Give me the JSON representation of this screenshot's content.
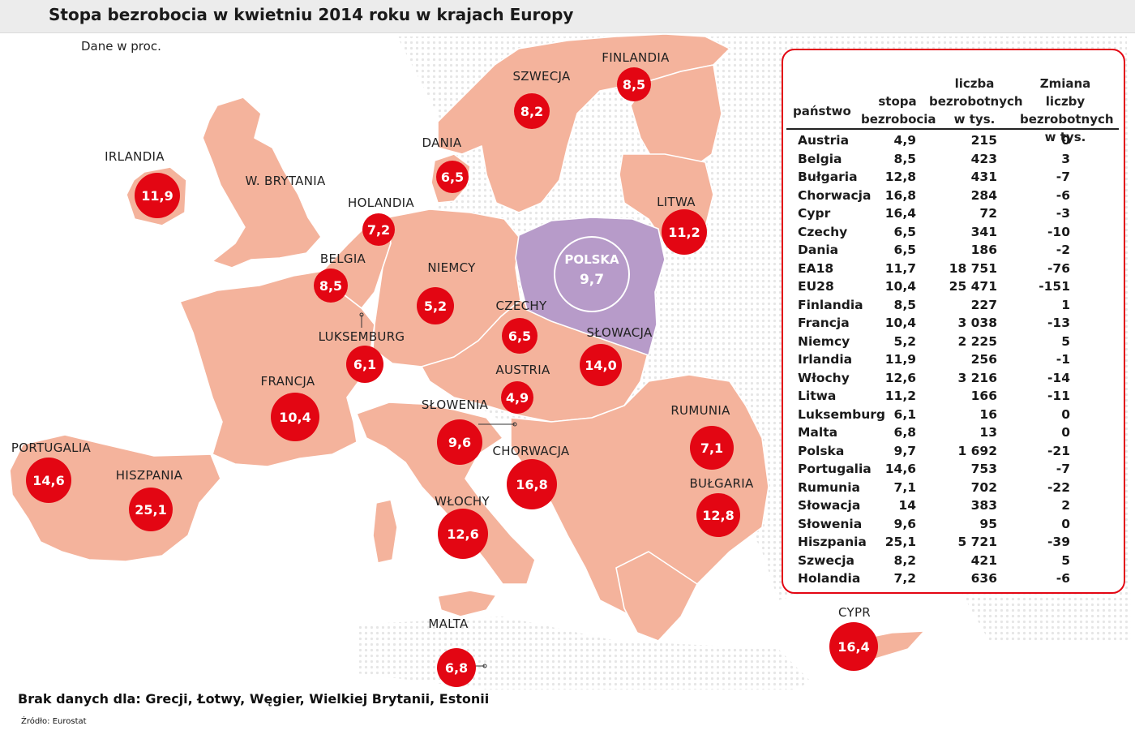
{
  "title": "Stopa bezrobocia w kwietniu 2014 roku w krajach Europy",
  "subtitle": "Dane w proc.",
  "colors": {
    "land": "#f4b39c",
    "poland": "#b79bc9",
    "bubble": "#e30613",
    "background_dots": "#e6e6e6"
  },
  "countries": [
    {
      "name": "IRLANDIA",
      "value": "11,9"
    },
    {
      "name": "W. BRYTANIA",
      "value": ""
    },
    {
      "name": "HOLANDIA",
      "value": "7,2"
    },
    {
      "name": "BELGIA",
      "value": "8,5"
    },
    {
      "name": "LUKSEMBURG",
      "value": "6,1"
    },
    {
      "name": "FRANCJA",
      "value": "10,4"
    },
    {
      "name": "PORTUGALIA",
      "value": "14,6"
    },
    {
      "name": "HISZPANIA",
      "value": "25,1"
    },
    {
      "name": "NIEMCY",
      "value": "5,2"
    },
    {
      "name": "DANIA",
      "value": "6,5"
    },
    {
      "name": "SZWECJA",
      "value": "8,2"
    },
    {
      "name": "FINLANDIA",
      "value": "8,5"
    },
    {
      "name": "LITWA",
      "value": "11,2"
    },
    {
      "name": "CZECHY",
      "value": "6,5"
    },
    {
      "name": "SŁOWACJA",
      "value": "14,0"
    },
    {
      "name": "AUSTRIA",
      "value": "4,9"
    },
    {
      "name": "SŁOWENIA",
      "value": "9,6"
    },
    {
      "name": "CHORWACJA",
      "value": "16,8"
    },
    {
      "name": "WŁOCHY",
      "value": "12,6"
    },
    {
      "name": "MALTA",
      "value": "6,8"
    },
    {
      "name": "RUMUNIA",
      "value": "7,1"
    },
    {
      "name": "BUŁGARIA",
      "value": "12,8"
    },
    {
      "name": "CYPR",
      "value": "16,4"
    }
  ],
  "poland": {
    "name": "POLSKA",
    "value": "9,7"
  },
  "table": {
    "headers": {
      "country": "państwo",
      "rate": "stopa\nbezrobocia",
      "unemployed": "liczba\nbezrobotnych\nw tys.",
      "change": "Zmiana liczby\nbezrobotnych\nw tys."
    },
    "rows": [
      [
        "Austria",
        "4,9",
        "215",
        "0"
      ],
      [
        "Belgia",
        "8,5",
        "423",
        "3"
      ],
      [
        "Bułgaria",
        "12,8",
        "431",
        "-7"
      ],
      [
        "Chorwacja",
        "16,8",
        "284",
        "-6"
      ],
      [
        "Cypr",
        "16,4",
        "72",
        "-3"
      ],
      [
        "Czechy",
        "6,5",
        "341",
        "-10"
      ],
      [
        "Dania",
        "6,5",
        "186",
        "-2"
      ],
      [
        "EA18",
        "11,7",
        "18 751",
        "-76"
      ],
      [
        "EU28",
        "10,4",
        "25 471",
        "-151"
      ],
      [
        "Finlandia",
        "8,5",
        "227",
        "1"
      ],
      [
        "Francja",
        "10,4",
        "3 038",
        "-13"
      ],
      [
        "Niemcy",
        "5,2",
        "2 225",
        "5"
      ],
      [
        "Irlandia",
        "11,9",
        "256",
        "-1"
      ],
      [
        "Włochy",
        "12,6",
        "3 216",
        "-14"
      ],
      [
        "Litwa",
        "11,2",
        "166",
        "-11"
      ],
      [
        "Luksemburg",
        "6,1",
        "16",
        "0"
      ],
      [
        "Malta",
        "6,8",
        "13",
        "0"
      ],
      [
        "Polska",
        "9,7",
        "1 692",
        "-21"
      ],
      [
        "Portugalia",
        "14,6",
        "753",
        "-7"
      ],
      [
        "Rumunia",
        "7,1",
        "702",
        "-22"
      ],
      [
        "Słowacja",
        "14",
        "383",
        "2"
      ],
      [
        "Słowenia",
        "9,6",
        "95",
        "0"
      ],
      [
        "Hiszpania",
        "25,1",
        "5 721",
        "-39"
      ],
      [
        "Szwecja",
        "8,2",
        "421",
        "5"
      ],
      [
        "Holandia",
        "7,2",
        "636",
        "-6"
      ]
    ]
  },
  "footnote": "Brak danych dla: Grecji, Łotwy, Węgier, Wielkiej Brytanii, Estonii",
  "source": "Źródło: Eurostat"
}
